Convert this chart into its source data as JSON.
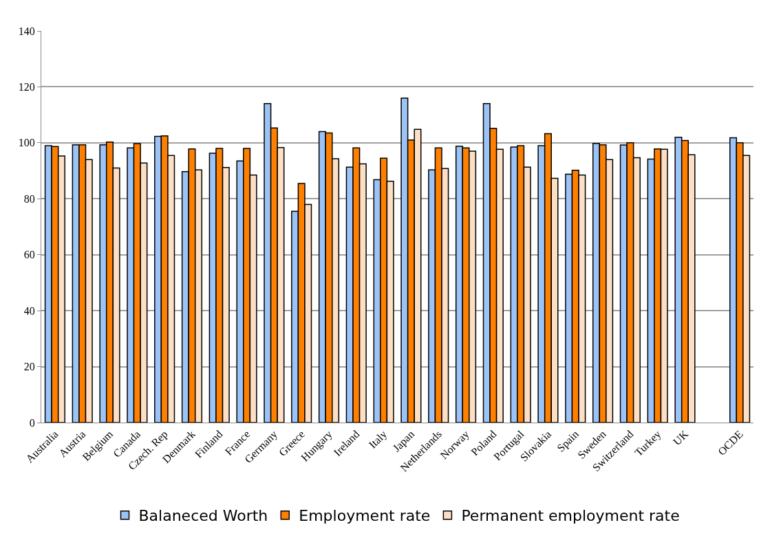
{
  "chart_data": {
    "type": "bar",
    "categories": [
      "Australia",
      "Austria",
      "Belgium",
      "Canada",
      "Czech. Rep",
      "Denmark",
      "Finland",
      "France",
      "Germany",
      "Greece",
      "Hungary",
      "Ireland",
      "Italy",
      "Japan",
      "Netherlands",
      "Norway",
      "Poland",
      "Portugal",
      "Slovakia",
      "Spain",
      "Sweden",
      "Switzerland",
      "Turkey",
      "UK",
      null,
      "OCDE"
    ],
    "series": [
      {
        "name": "Balaneced Worth",
        "color": "#9cc3f5",
        "values": [
          99,
          99.3,
          99.3,
          98.2,
          102.3,
          89.7,
          96.3,
          93.5,
          114,
          75.5,
          104,
          91.3,
          86.8,
          116,
          90.3,
          98.8,
          114,
          98.5,
          99,
          88.8,
          99.8,
          99.2,
          94.2,
          102,
          null,
          101.8
        ]
      },
      {
        "name": "Employment rate",
        "color": "#ff7f00",
        "values": [
          98.7,
          99.3,
          100.3,
          99.7,
          102.5,
          97.8,
          98,
          98,
          105.3,
          85.5,
          103.5,
          98.2,
          94.5,
          101,
          98.2,
          98.2,
          105.2,
          99,
          103.3,
          90.2,
          99.3,
          100,
          97.8,
          100.8,
          null,
          100
        ]
      },
      {
        "name": "Permanent employment rate",
        "color": "#fcdfc4",
        "values": [
          95.3,
          94,
          91,
          92.8,
          95.5,
          90.3,
          91.2,
          88.5,
          98.3,
          78,
          94.3,
          92.5,
          86.3,
          104.8,
          90.8,
          97,
          97.7,
          91.3,
          87.3,
          88.5,
          94,
          94.7,
          97.7,
          95.7,
          null,
          95.5
        ]
      }
    ],
    "ylim": [
      0,
      140
    ],
    "yticks": [
      0,
      20,
      40,
      60,
      80,
      100,
      120,
      140
    ],
    "grid": "y",
    "legend": "bottom"
  }
}
